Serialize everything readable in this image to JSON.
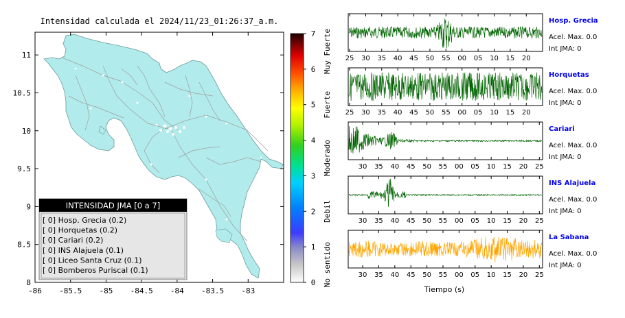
{
  "map": {
    "title": "Intensidad calculada el 2024/11/23_01:26:37_a.m.",
    "xticks": [
      "-86",
      "-85.5",
      "-85",
      "-84.5",
      "-84",
      "-83.5",
      "-83"
    ],
    "yticks": [
      "11",
      "10.5",
      "10",
      "9.5",
      "9",
      "8.5",
      "8"
    ],
    "xlim": [
      -86,
      -82.5
    ],
    "ylim": [
      8,
      11.3
    ]
  },
  "colorbar": {
    "ticks": [
      "0",
      "1",
      "2",
      "3",
      "4",
      "5",
      "6",
      "7"
    ],
    "categories": [
      "No sentido",
      "Debil",
      "Moderado",
      "Fuerte",
      "Muy Fuerte"
    ]
  },
  "legend": {
    "title": "INTENSIDAD JMA [0 a 7]",
    "items": [
      {
        "text": "[ 0]  Hosp. Grecia (0.2)"
      },
      {
        "text": "[ 0]  Horquetas (0.2)"
      },
      {
        "text": "[ 0]  Cariari (0.2)"
      },
      {
        "text": "[ 0]  INS Alajuela (0.1)"
      },
      {
        "text": "[ 0]  Liceo Santa Cruz (0.1)"
      },
      {
        "text": "[ 0]  Bomberos Puriscal (0.1)"
      }
    ]
  },
  "traces": {
    "xlabel": "Tiempo (s)",
    "stations": [
      {
        "name": "Hosp. Grecia",
        "acel": "Acel. Max. 0.0",
        "int": "Int JMA: 0",
        "color": "#006400",
        "ticks": [
          "25",
          "30",
          "35",
          "40",
          "45",
          "50",
          "55",
          "00",
          "05",
          "10",
          "15",
          "20"
        ]
      },
      {
        "name": "Horquetas",
        "acel": "Acel. Max. 0.0",
        "int": "Int JMA: 0",
        "color": "#006400",
        "ticks": [
          "25",
          "30",
          "35",
          "40",
          "45",
          "50",
          "55",
          "00",
          "05",
          "10",
          "15",
          "20"
        ]
      },
      {
        "name": "Cariari",
        "acel": "Acel. Max. 0.0",
        "int": "Int JMA: 0",
        "color": "#006400",
        "ticks": [
          "30",
          "35",
          "40",
          "45",
          "50",
          "55",
          "00",
          "05",
          "10",
          "15",
          "20",
          "25"
        ]
      },
      {
        "name": "INS Alajuela",
        "acel": "Acel. Max. 0.0",
        "int": "Int JMA: 0",
        "color": "#006400",
        "ticks": [
          "30",
          "35",
          "40",
          "45",
          "50",
          "55",
          "00",
          "05",
          "10",
          "15",
          "20",
          "25"
        ]
      },
      {
        "name": "La Sabana",
        "acel": "Acel. Max. 0.0",
        "int": "Int JMA: 0",
        "color": "#ffa500",
        "ticks": [
          "30",
          "35",
          "40",
          "45",
          "50",
          "55",
          "00",
          "05",
          "10",
          "15",
          "20",
          "25"
        ]
      }
    ]
  },
  "chart_data": [
    {
      "type": "heatmap",
      "title": "Intensidad calculada el 2024/11/23_01:26:37_a.m.",
      "xlim": [
        -86,
        -82.5
      ],
      "ylim": [
        8,
        11.3
      ],
      "colorbar_range": [
        0,
        7
      ],
      "colorbar_labels": [
        "No sentido",
        "Debil",
        "Moderado",
        "Fuerte",
        "Muy Fuerte"
      ],
      "stations": [
        {
          "name": "Hosp. Grecia",
          "jma": 0,
          "value": 0.2
        },
        {
          "name": "Horquetas",
          "jma": 0,
          "value": 0.2
        },
        {
          "name": "Cariari",
          "jma": 0,
          "value": 0.2
        },
        {
          "name": "INS Alajuela",
          "jma": 0,
          "value": 0.1
        },
        {
          "name": "Liceo Santa Cruz",
          "jma": 0,
          "value": 0.1
        },
        {
          "name": "Bomberos Puriscal",
          "jma": 0,
          "value": 0.1
        }
      ]
    },
    {
      "type": "line",
      "xlabel": "Tiempo (s)",
      "series": [
        {
          "name": "Hosp. Grecia",
          "acel_max": 0.0,
          "int_jma": 0
        },
        {
          "name": "Horquetas",
          "acel_max": 0.0,
          "int_jma": 0
        },
        {
          "name": "Cariari",
          "acel_max": 0.0,
          "int_jma": 0
        },
        {
          "name": "INS Alajuela",
          "acel_max": 0.0,
          "int_jma": 0
        },
        {
          "name": "La Sabana",
          "acel_max": 0.0,
          "int_jma": 0
        }
      ]
    }
  ]
}
